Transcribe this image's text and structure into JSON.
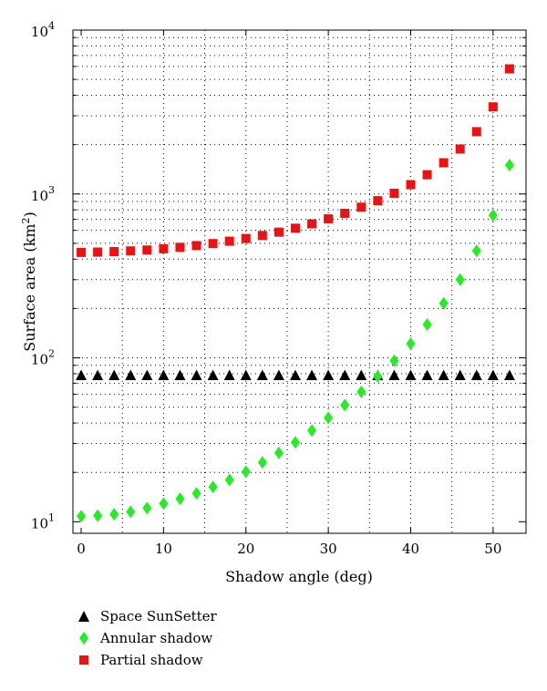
{
  "chart_data": {
    "type": "scatter",
    "xlabel": "Shadow angle (deg)",
    "ylabel_main": "Surface area (km",
    "ylabel_sup": "2",
    "ylabel_close": ")",
    "y_scale": "log",
    "xlim": [
      -1,
      54
    ],
    "ylim": [
      8.5,
      10000
    ],
    "grid": true,
    "legend_placement": "bottom-left",
    "x_ticks": [
      0,
      10,
      20,
      30,
      40,
      50
    ],
    "x_tick_labels": [
      "0",
      "10",
      "20",
      "30",
      "40",
      "50"
    ],
    "y_ticks": [
      {
        "value": 10,
        "base": "10",
        "exp": "1"
      },
      {
        "value": 100,
        "base": "10",
        "exp": "2"
      },
      {
        "value": 1000,
        "base": "10",
        "exp": "3"
      },
      {
        "value": 10000,
        "base": "10",
        "exp": "4"
      }
    ],
    "x": [
      0,
      2,
      4,
      6,
      8,
      10,
      12,
      14,
      16,
      18,
      20,
      22,
      24,
      26,
      28,
      30,
      32,
      34,
      36,
      38,
      40,
      42,
      44,
      46,
      48,
      50,
      52
    ],
    "series": [
      {
        "name": "Space SunSetter",
        "marker": "triangle",
        "color": "#000000",
        "values": [
          78,
          78,
          78,
          78,
          78,
          78,
          78,
          78,
          78,
          78,
          78,
          78,
          78,
          78,
          78,
          78,
          78,
          78,
          78,
          78,
          78,
          78,
          78,
          78,
          78,
          78,
          78
        ]
      },
      {
        "name": "Annular shadow",
        "marker": "diamond",
        "color": "#22ee22",
        "values": [
          10.8,
          10.9,
          11.1,
          11.5,
          12.1,
          12.9,
          13.8,
          14.9,
          16.3,
          18.0,
          20.2,
          23.0,
          26.3,
          30.5,
          36.0,
          43.0,
          51.5,
          62.0,
          77.0,
          96.0,
          122,
          160,
          215,
          300,
          450,
          740,
          1500
        ]
      },
      {
        "name": "Partial shadow",
        "marker": "square",
        "color": "#ee1111",
        "values": [
          440,
          442,
          445,
          449,
          455,
          463,
          472,
          484,
          498,
          515,
          535,
          558,
          585,
          618,
          657,
          705,
          762,
          830,
          910,
          1010,
          1140,
          1310,
          1550,
          1880,
          2400,
          3400,
          5800
        ]
      }
    ]
  }
}
